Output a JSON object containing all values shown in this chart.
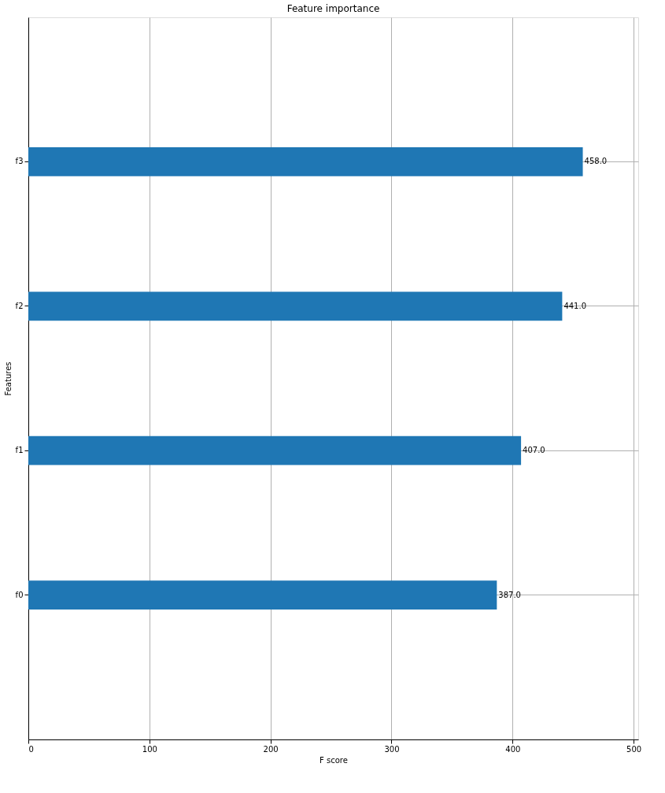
{
  "chart_data": {
    "type": "bar",
    "orientation": "horizontal",
    "title": "Feature importance",
    "xlabel": "F score",
    "ylabel": "Features",
    "categories": [
      "f3",
      "f2",
      "f1",
      "f0"
    ],
    "values": [
      458,
      441,
      407,
      387
    ],
    "value_labels": [
      "458.0",
      "441.0",
      "407.0",
      "387.0"
    ],
    "color": "#1f77b4",
    "xlim": [
      0,
      503.8
    ],
    "xticks": [
      0,
      100,
      200,
      300,
      400,
      500
    ],
    "grid": true
  }
}
